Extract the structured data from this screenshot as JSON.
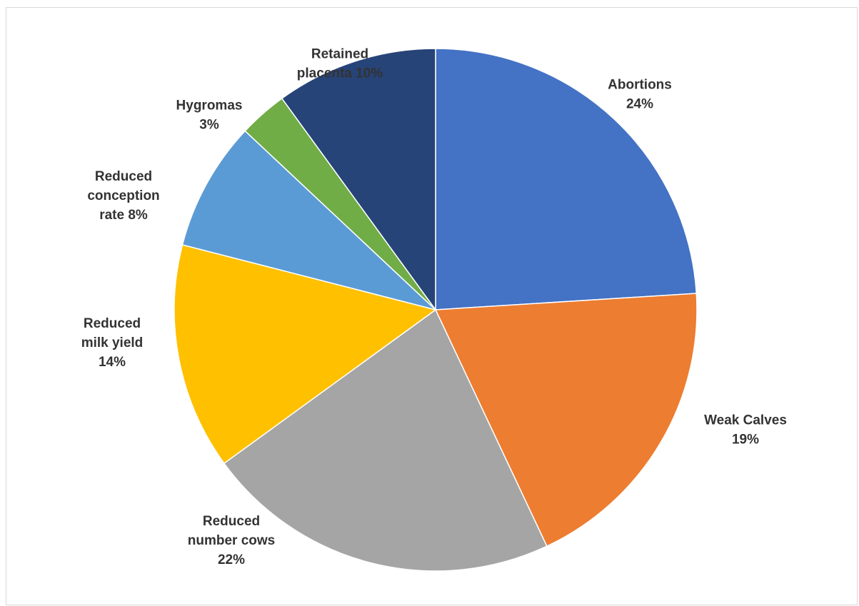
{
  "chart_data": {
    "type": "pie",
    "title": "",
    "start_angle_deg": 0,
    "direction": "clockwise",
    "slices": [
      {
        "label_lines": [
          "Abortions",
          "24%"
        ],
        "value": 24,
        "color": "#4472C4"
      },
      {
        "label_lines": [
          "Weak Calves",
          "19%"
        ],
        "value": 19,
        "color": "#ED7D31"
      },
      {
        "label_lines": [
          "Reduced",
          "number cows",
          "22%"
        ],
        "value": 22,
        "color": "#A5A5A5"
      },
      {
        "label_lines": [
          "Reduced",
          "milk yield",
          "14%"
        ],
        "value": 14,
        "color": "#FFC000"
      },
      {
        "label_lines": [
          "Reduced",
          "conception",
          "rate 8%"
        ],
        "value": 8,
        "color": "#5B9BD5"
      },
      {
        "label_lines": [
          "Hygromas",
          "3%"
        ],
        "value": 3,
        "color": "#70AD47"
      },
      {
        "label_lines": [
          "Retained",
          "placenta 10%"
        ],
        "value": 10,
        "color": "#264478"
      }
    ]
  }
}
